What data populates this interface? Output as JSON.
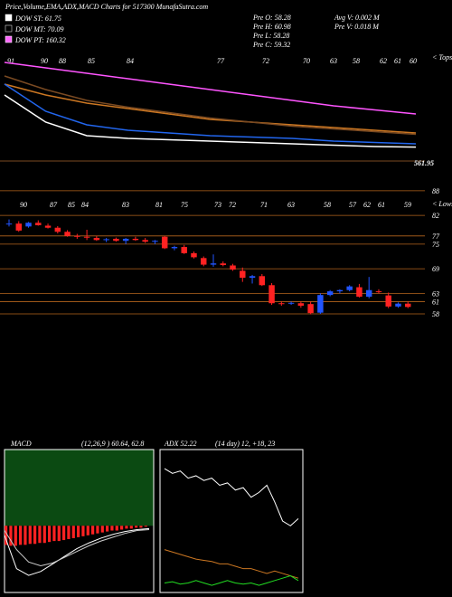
{
  "header": {
    "title": "Price,Volume,EMA,ADX,MACD Charts for 517300 MunafaSutra.com",
    "legend": [
      {
        "text": "DOW ST: 61.75",
        "color": "#ffffff"
      },
      {
        "text": "DOW MT: 70.09",
        "color": "#000000"
      },
      {
        "text": "DOW PT: 160.32",
        "color": "#ff66ff"
      }
    ],
    "stats": [
      "Pre  O: 58.28",
      "Pre  H: 60.98",
      "Pre  L: 58.28",
      "Pre  C: 59.32",
      "Avg V: 0.002  M",
      "Pre  V: 0.018  M"
    ]
  },
  "chart_data": [
    {
      "type": "line",
      "top_labels": [
        "91",
        "90",
        "88",
        "85",
        "84",
        "77",
        "72",
        "70",
        "63",
        "58",
        "62",
        "61",
        "60"
      ],
      "corner_label": "< Tops",
      "price_label": "561.95",
      "ylim": [
        55,
        95
      ],
      "series": [
        {
          "color": "#ff55ff",
          "values": [
            92,
            90,
            88,
            86,
            84,
            82,
            80,
            78,
            76,
            74.5,
            73
          ]
        },
        {
          "color": "#cc7722",
          "values": [
            84,
            80,
            77,
            75,
            73,
            71,
            70,
            69,
            68,
            67,
            66
          ]
        },
        {
          "color": "#7a4a22",
          "values": [
            87,
            82,
            78,
            75.5,
            73.5,
            71.5,
            70,
            68.5,
            67.5,
            66.5,
            65.5
          ]
        },
        {
          "color": "#2266ee",
          "values": [
            84,
            74,
            69,
            67,
            66,
            65,
            64.5,
            64,
            63,
            62.5,
            62
          ]
        },
        {
          "color": "#ffffff",
          "values": [
            80,
            70,
            65,
            64,
            63.5,
            63,
            62.5,
            62,
            61.5,
            61,
            60.8
          ]
        }
      ]
    },
    {
      "type": "candlestick",
      "top_labels": [
        "90",
        "87",
        "85",
        "84",
        "83",
        "81",
        "75",
        "73",
        "72",
        "71",
        "63",
        "58",
        "57",
        "62",
        "61",
        "59"
      ],
      "corner_label": "< Lows",
      "ylim": [
        28.7,
        90.4
      ],
      "yticks": [
        88,
        82,
        77,
        75,
        69,
        63,
        61,
        58
      ],
      "level_color": "#b5651d",
      "up_color": "#2255ff",
      "down_color": "#ff2222",
      "ohlc": [
        [
          80,
          81,
          79.3,
          80
        ],
        [
          80,
          80.6,
          78,
          78.3
        ],
        [
          79.3,
          80.4,
          79,
          80.2
        ],
        [
          80.2,
          80.8,
          79.5,
          79.6
        ],
        [
          79.5,
          80,
          78.8,
          79
        ],
        [
          79,
          79.4,
          77.6,
          78
        ],
        [
          78,
          78.4,
          76.8,
          77
        ],
        [
          77,
          77.5,
          76.3,
          76.8
        ],
        [
          76.8,
          78.5,
          76,
          76.6
        ],
        [
          76.5,
          77,
          75.8,
          76
        ],
        [
          76,
          76.5,
          75.5,
          76.2
        ],
        [
          76.3,
          76.6,
          75.6,
          75.8
        ],
        [
          75.8,
          76.5,
          75,
          76.3
        ],
        [
          76.3,
          76.8,
          75.8,
          76
        ],
        [
          76,
          76.5,
          75.3,
          75.6
        ],
        [
          75.6,
          76,
          75,
          75.8
        ],
        [
          76.8,
          77,
          73.8,
          74
        ],
        [
          74,
          74.6,
          73.5,
          74.3
        ],
        [
          74.3,
          74.8,
          72.6,
          72.8
        ],
        [
          72.8,
          73.2,
          71.5,
          71.8
        ],
        [
          71.6,
          72,
          69.6,
          70
        ],
        [
          70,
          72.5,
          69.5,
          70.3
        ],
        [
          70.3,
          70.8,
          69.6,
          69.9
        ],
        [
          69.8,
          70.2,
          68.5,
          68.8
        ],
        [
          68.5,
          69.3,
          65.8,
          66.8
        ],
        [
          66.8,
          67.5,
          65.4,
          67.2
        ],
        [
          67.2,
          67.7,
          64.8,
          65
        ],
        [
          65,
          65.5,
          60.2,
          60.6
        ],
        [
          60.6,
          61,
          60,
          60.5
        ],
        [
          60.5,
          61,
          60.2,
          60.7
        ],
        [
          60.6,
          61,
          59.5,
          60
        ],
        [
          60.4,
          61,
          57.9,
          58.2
        ],
        [
          58.3,
          63,
          58,
          62.6
        ],
        [
          62.6,
          63.8,
          62.3,
          63.5
        ],
        [
          63.5,
          64,
          63,
          63.8
        ],
        [
          63.8,
          65,
          63.5,
          64.7
        ],
        [
          64.5,
          65.3,
          62,
          62.2
        ],
        [
          62.2,
          67,
          61.8,
          63.8
        ],
        [
          63.5,
          64,
          63,
          63.3
        ],
        [
          62.5,
          63.2,
          59.4,
          59.8
        ],
        [
          59.8,
          60.8,
          59.5,
          60.5
        ],
        [
          60.5,
          61,
          59.4,
          59.7
        ]
      ]
    },
    {
      "type": "macd",
      "title": "MACD",
      "params": "(12,26,9 ) 60.64, 62.8",
      "ylim": [
        -7,
        8
      ],
      "hist_color": "#ff2222",
      "histogram": [
        -2,
        -2.1,
        -2.1,
        -2,
        -2,
        -1.9,
        -1.9,
        -1.8,
        -1.8,
        -1.7,
        -1.6,
        -1.6,
        -1.5,
        -1.4,
        -1.3,
        -1.2,
        -1.1,
        -1,
        -0.9,
        -0.8,
        -0.7,
        -0.6,
        -0.5,
        -0.5,
        -0.4,
        -0.3,
        -0.3,
        -0.2,
        -0.2,
        -0.1
      ],
      "series": [
        {
          "color": "#ffffff",
          "values": [
            -1,
            -4.5,
            -5.2,
            -4.8,
            -4,
            -3.2,
            -2.4,
            -1.8,
            -1.3,
            -0.9,
            -0.6,
            -0.4,
            -0.3
          ]
        },
        {
          "color": "#cccccc",
          "values": [
            -0.5,
            -2.5,
            -3.8,
            -4.2,
            -3.9,
            -3.3,
            -2.7,
            -2.1,
            -1.6,
            -1.2,
            -0.8,
            -0.5,
            -0.4
          ]
        }
      ]
    },
    {
      "type": "adx",
      "title": "ADX 52.22",
      "params": "(14 day) 12, +18, 23",
      "ylim": [
        0,
        60
      ],
      "series": [
        {
          "color": "#ffffff",
          "values": [
            52,
            50,
            51,
            48,
            49,
            47,
            48,
            45,
            46,
            43,
            44,
            40,
            42,
            45,
            38,
            30,
            28,
            31
          ]
        },
        {
          "color": "#cc7722",
          "values": [
            18,
            17,
            16,
            15,
            14,
            13.5,
            13,
            12,
            12,
            11,
            10,
            10,
            9,
            8,
            9,
            8,
            7,
            6
          ]
        },
        {
          "color": "#22dd22",
          "values": [
            4,
            4.5,
            3.5,
            4,
            5,
            4,
            3,
            4,
            5,
            4,
            3.5,
            4,
            3,
            4,
            5,
            6,
            7,
            5
          ]
        }
      ]
    }
  ]
}
